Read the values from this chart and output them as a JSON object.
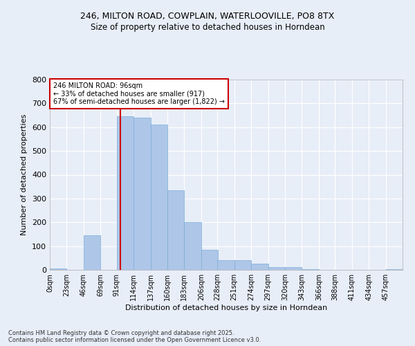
{
  "title1": "246, MILTON ROAD, COWPLAIN, WATERLOOVILLE, PO8 8TX",
  "title2": "Size of property relative to detached houses in Horndean",
  "xlabel": "Distribution of detached houses by size in Horndean",
  "ylabel": "Number of detached properties",
  "bar_color": "#aec6e8",
  "bar_edge_color": "#7aafd4",
  "bg_color": "#e8eef8",
  "fig_bg_color": "#e8eef8",
  "grid_color": "#ffffff",
  "bin_labels": [
    "0sqm",
    "23sqm",
    "46sqm",
    "69sqm",
    "91sqm",
    "114sqm",
    "137sqm",
    "160sqm",
    "183sqm",
    "206sqm",
    "228sqm",
    "251sqm",
    "274sqm",
    "297sqm",
    "320sqm",
    "343sqm",
    "366sqm",
    "388sqm",
    "411sqm",
    "434sqm",
    "457sqm"
  ],
  "bin_edges": [
    0,
    23,
    46,
    69,
    91,
    114,
    137,
    160,
    183,
    206,
    228,
    251,
    274,
    297,
    320,
    343,
    366,
    388,
    411,
    434,
    457
  ],
  "counts": [
    5,
    0,
    145,
    0,
    645,
    640,
    610,
    335,
    200,
    85,
    42,
    42,
    25,
    12,
    13,
    3,
    0,
    0,
    0,
    0,
    3
  ],
  "vline_x": 96,
  "vline_color": "#cc0000",
  "annotation_text": "246 MILTON ROAD: 96sqm\n← 33% of detached houses are smaller (917)\n67% of semi-detached houses are larger (1,822) →",
  "annotation_box_color": "#cc0000",
  "ylim": [
    0,
    800
  ],
  "yticks": [
    0,
    100,
    200,
    300,
    400,
    500,
    600,
    700,
    800
  ],
  "footer1": "Contains HM Land Registry data © Crown copyright and database right 2025.",
  "footer2": "Contains public sector information licensed under the Open Government Licence v3.0."
}
